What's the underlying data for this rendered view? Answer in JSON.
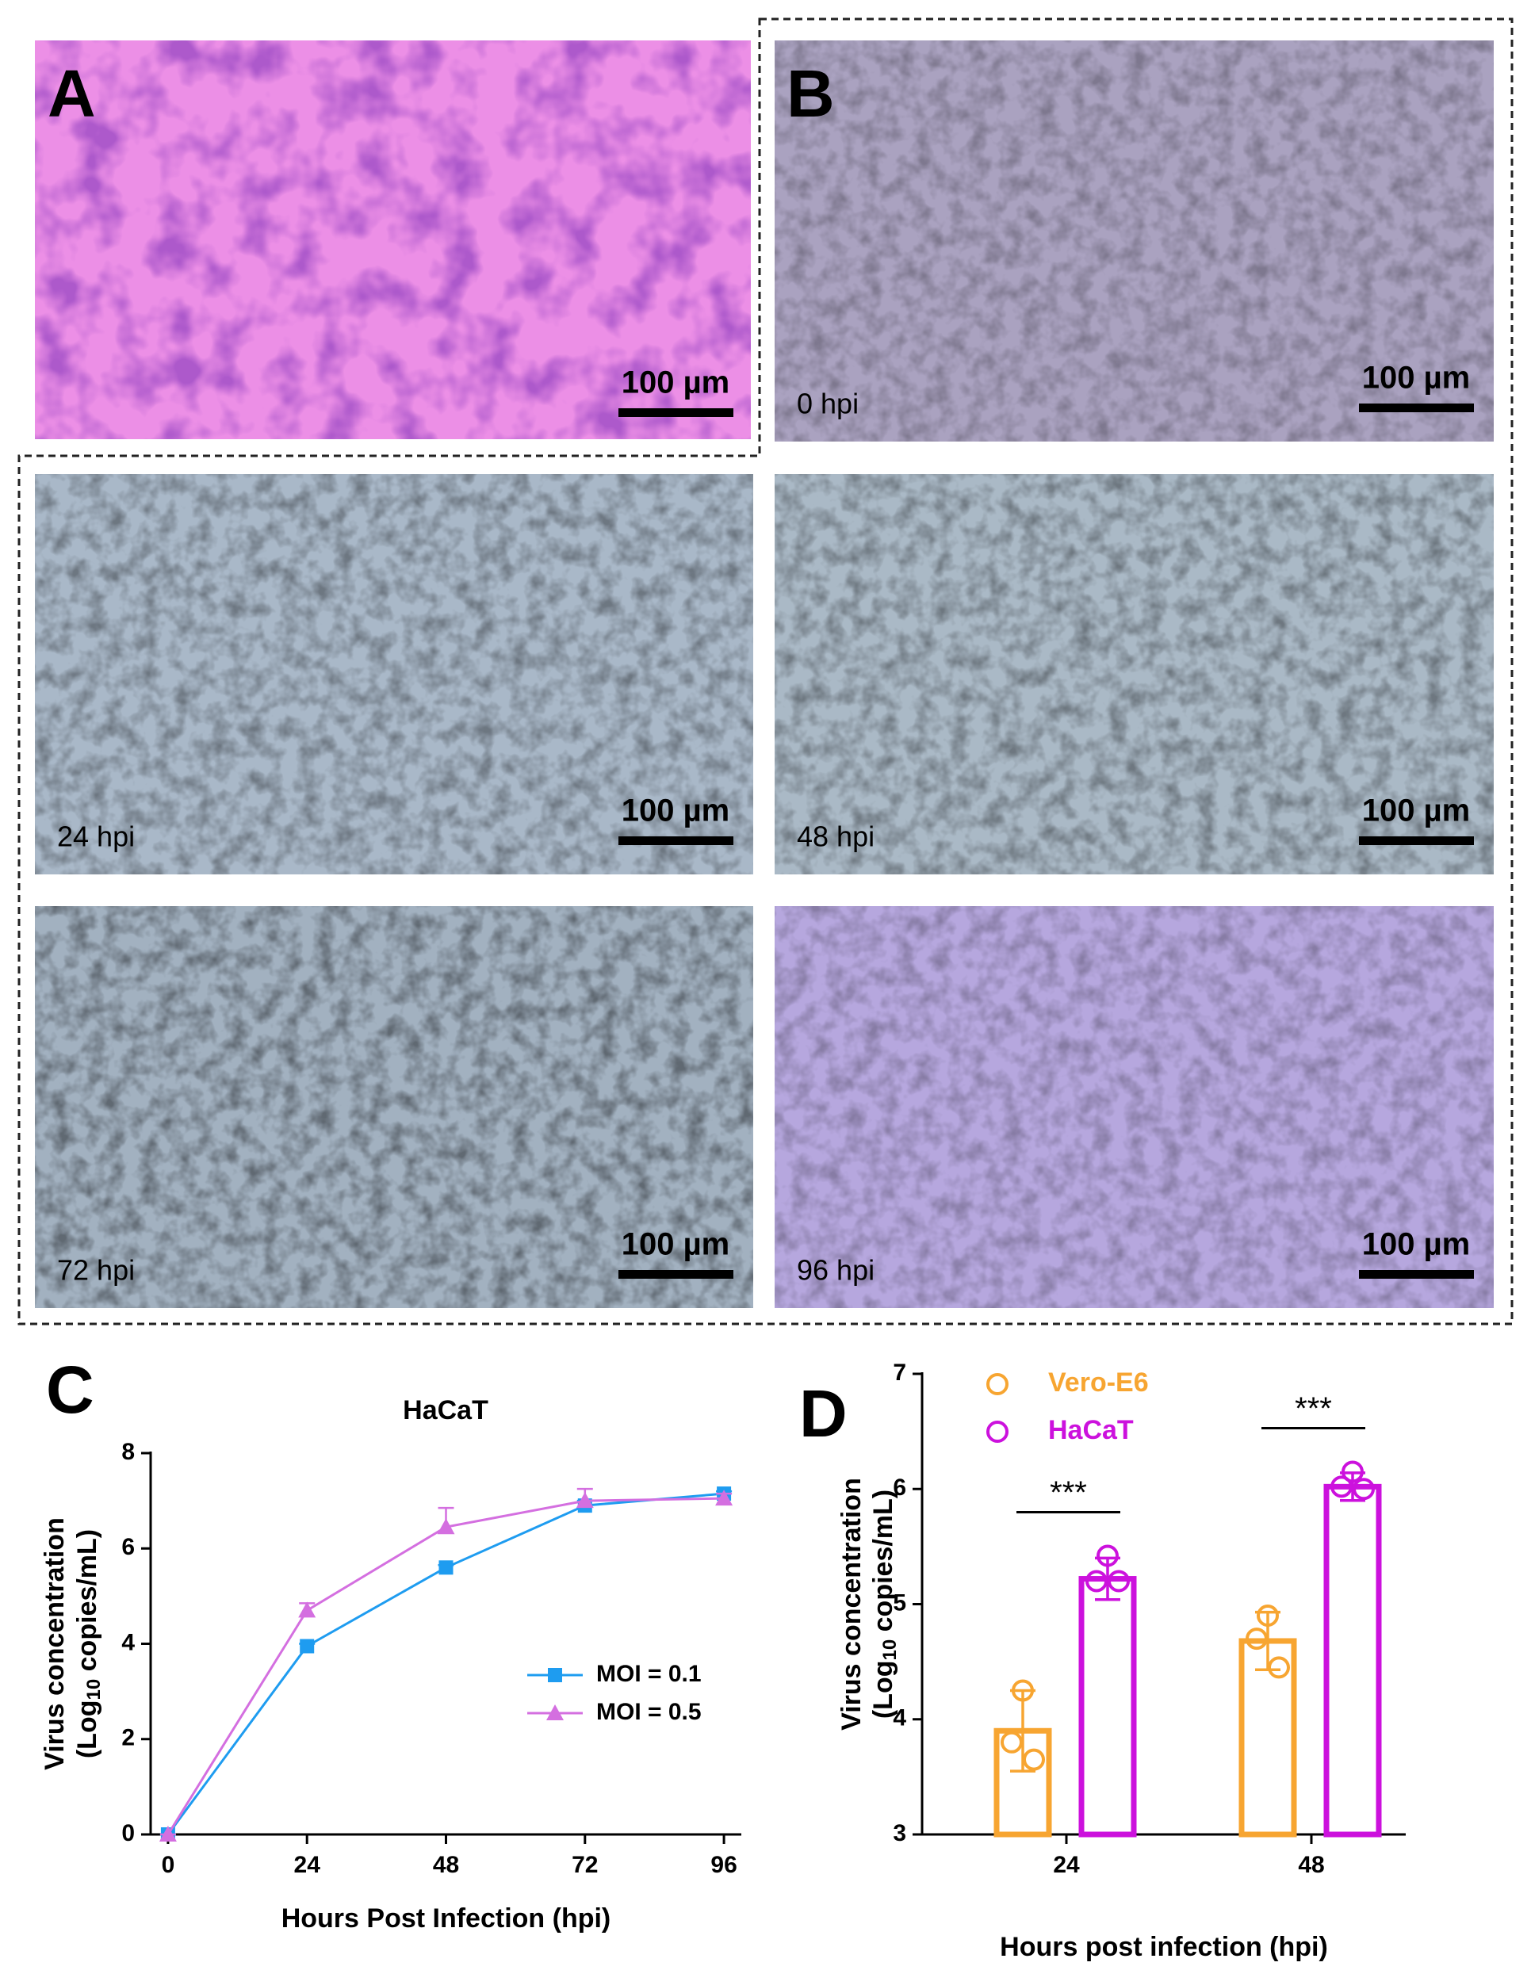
{
  "panels": {
    "A": {
      "label": "A",
      "scale_bar": "100 µm"
    },
    "B": {
      "label": "B",
      "images": [
        {
          "time": "0 hpi",
          "scale_bar": "100 µm"
        },
        {
          "time": "24 hpi",
          "scale_bar": "100 µm"
        },
        {
          "time": "48 hpi",
          "scale_bar": "100 µm"
        },
        {
          "time": "72 hpi",
          "scale_bar": "100 µm"
        },
        {
          "time": "96 hpi",
          "scale_bar": "100 µm"
        }
      ]
    }
  },
  "chart_data": [
    {
      "type": "line",
      "panel_label": "C",
      "title": "HaCaT",
      "x_label": "Hours Post Infection (hpi)",
      "y_label": [
        "Virus concentration",
        "(Log",
        "10",
        " copies/mL)"
      ],
      "x": [
        0,
        24,
        48,
        72,
        96
      ],
      "xlim": [
        -3,
        99
      ],
      "xticks": [
        0,
        24,
        48,
        72,
        96
      ],
      "ylim": [
        0,
        8
      ],
      "yticks": [
        0,
        2,
        4,
        6,
        8
      ],
      "legend": "right",
      "series": [
        {
          "name": "MOI = 0.1",
          "color": "#1e9cf0",
          "marker": "square",
          "values": [
            0,
            3.95,
            5.6,
            6.9,
            7.15
          ],
          "errors": [
            0,
            0.05,
            0.05,
            0.1,
            0.05
          ]
        },
        {
          "name": "MOI = 0.5",
          "color": "#d46fe0",
          "marker": "triangle",
          "values": [
            0,
            4.7,
            6.45,
            7.0,
            7.05
          ],
          "errors": [
            0,
            0.15,
            0.4,
            0.25,
            0.1
          ]
        }
      ]
    },
    {
      "type": "bar",
      "panel_label": "D",
      "x_label": "Hours post infection (hpi)",
      "y_label": [
        "Virus concentration",
        "(Log",
        "10",
        " copies/mL)"
      ],
      "categories": [
        "24",
        "48"
      ],
      "ylim": [
        3,
        7
      ],
      "yticks": [
        3,
        4,
        5,
        6,
        7
      ],
      "legend": "top-left",
      "significance": [
        "***",
        "***"
      ],
      "series": [
        {
          "name": "Vero-E6",
          "color": "#f7a531",
          "values": [
            3.9,
            4.68
          ],
          "errors": [
            0.35,
            0.25
          ],
          "points": [
            [
              4.25,
              3.8,
              3.65
            ],
            [
              4.9,
              4.7,
              4.45
            ]
          ]
        },
        {
          "name": "HaCaT",
          "color": "#cc11dd",
          "values": [
            5.22,
            6.02
          ],
          "errors": [
            0.18,
            0.12
          ],
          "points": [
            [
              5.42,
              5.2,
              5.2
            ],
            [
              6.15,
              6.02,
              6.0
            ]
          ]
        }
      ]
    }
  ]
}
